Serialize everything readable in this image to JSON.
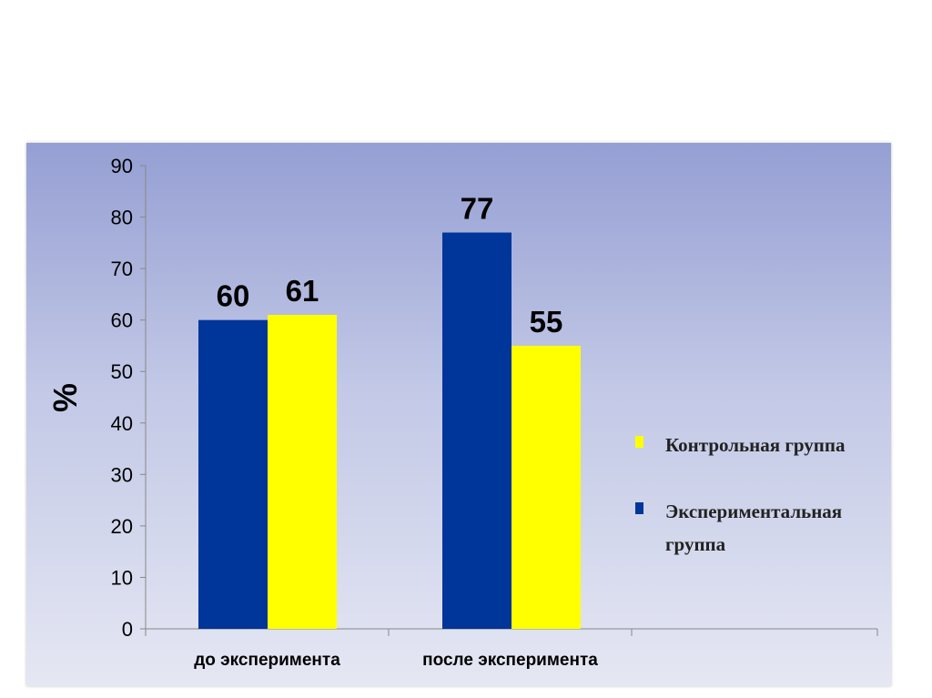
{
  "colors": {
    "experimental": "#00359a",
    "control": "#ffff00"
  },
  "chart_data": {
    "type": "bar",
    "categories": [
      "до эксперимента",
      "после эксперимента"
    ],
    "series": [
      {
        "name": "Экспериментальная группа",
        "values": [
          60,
          77
        ],
        "color": "#00359a"
      },
      {
        "name": "Контрольная группа",
        "values": [
          61,
          55
        ],
        "color": "#ffff00"
      }
    ],
    "ylabel": "%",
    "ylim": [
      0,
      90
    ],
    "yticks": [
      0,
      10,
      20,
      30,
      40,
      50,
      60,
      70,
      80,
      90
    ],
    "grid": false,
    "legend": {
      "placement": "right",
      "items": [
        {
          "label": "Контрольная группа",
          "color": "#ffff00"
        },
        {
          "label": "Экспериментальная группа",
          "color": "#00359a"
        }
      ]
    }
  }
}
